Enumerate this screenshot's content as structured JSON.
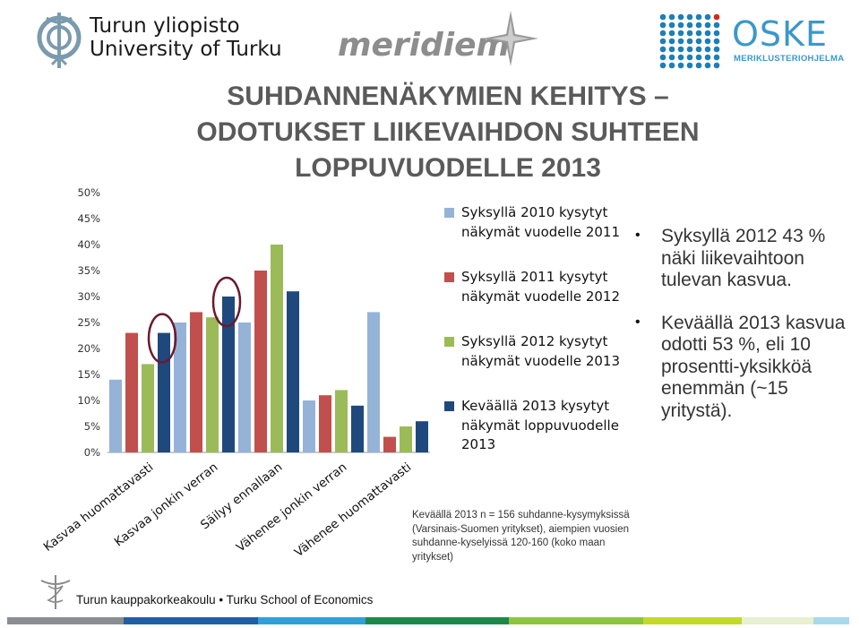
{
  "logos": {
    "utu_line1": "Turun yliopisto",
    "utu_line2": "University of Turku",
    "meridiem": "meridiem",
    "oske_big": "OSKE",
    "oske_small": "MERIKLUSTERIOHJELMA"
  },
  "title": {
    "line1": "SUHDANNENÄKYMIEN KEHITYS –",
    "line2": "ODOTUKSET LIIKEVAIHDON SUHTEEN",
    "line3": "LOPPUVUODELLE 2013"
  },
  "chart_data": {
    "type": "bar",
    "categories": [
      "Kasvaa huomattavasti",
      "Kasvaa jonkin verran",
      "Säilyy ennallaan",
      "Vähenee jonkin verran",
      "Vähenee huomattavasti"
    ],
    "y_ticks": [
      "0%",
      "5%",
      "10%",
      "15%",
      "20%",
      "25%",
      "30%",
      "35%",
      "40%",
      "45%",
      "50%"
    ],
    "ylim": [
      0,
      50
    ],
    "grid": false,
    "legend_position": "right",
    "series": [
      {
        "name": "Syksyllä 2010 kysytyt näkymät vuodelle 2011",
        "color": "#95b3d7",
        "values": [
          14,
          25,
          25,
          10,
          27
        ]
      },
      {
        "name": "Syksyllä 2011 kysytyt näkymät vuodelle 2012",
        "color": "#c0504d",
        "values": [
          23,
          27,
          35,
          11,
          3
        ]
      },
      {
        "name": "Syksyllä 2012 kysytyt näkymät vuodelle 2013",
        "color": "#9bbb59",
        "values": [
          17,
          26,
          40,
          12,
          5
        ]
      },
      {
        "name": "Keväällä 2013 kysytyt näkymät loppuvuodelle 2013",
        "color": "#1f497d",
        "values": [
          23,
          30,
          31,
          9,
          6
        ]
      }
    ],
    "circled": [
      {
        "series": 3,
        "category": 0
      },
      {
        "series": 3,
        "category": 1
      }
    ],
    "circle_color": "#6b1a30"
  },
  "bullets": [
    "Syksyllä 2012 43 % näki liikevaihtoon tulevan kasvua.",
    "Keväällä 2013 kasvua odotti 53 %, eli 10 prosentti-yksikköä enemmän (~15 yritystä)."
  ],
  "note": "Keväällä 2013 n = 156 suhdanne-kysymyksissä (Varsinais-Suomen yritykset), aiempien vuosien suhdanne-kyselyissä 120-160 (koko maan yritykset)",
  "footer": {
    "text": "Turun kauppakorkeakoulu • Turku School of Economics",
    "bar_colors": [
      "#8a8d91",
      "#1f5fa6",
      "#2fa0d8",
      "#1a8a4a",
      "#8cc63f",
      "#c3d92a",
      "#e8f0d0",
      "#a8d8ea"
    ]
  },
  "icons": [
    "caduceus-icon",
    "star-icon",
    "dot-grid-icon",
    "bullet-icon"
  ]
}
